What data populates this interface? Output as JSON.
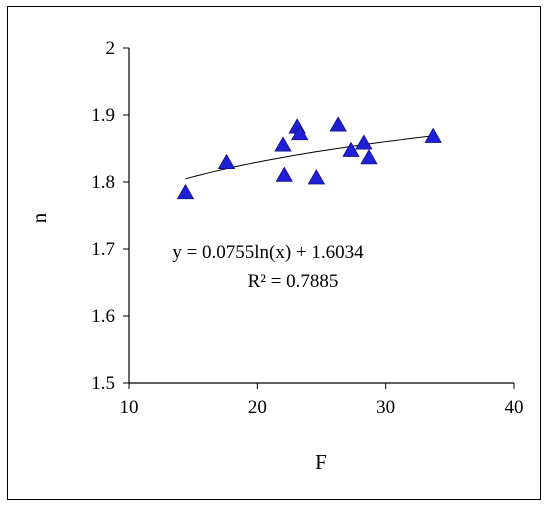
{
  "chart_data": {
    "type": "scatter",
    "title": "",
    "xlabel": "F",
    "ylabel": "n",
    "xlim": [
      10,
      40
    ],
    "ylim": [
      1.5,
      2.0
    ],
    "xticks": [
      "10",
      "20",
      "30",
      "40"
    ],
    "yticks": [
      "1.5",
      "1.6",
      "1.7",
      "1.8",
      "1.9",
      "2"
    ],
    "grid": false,
    "marker": "triangle",
    "marker_color": "#1f1fd6",
    "points": [
      {
        "x": 14.4,
        "y": 1.784
      },
      {
        "x": 17.6,
        "y": 1.829
      },
      {
        "x": 22.0,
        "y": 1.855
      },
      {
        "x": 22.1,
        "y": 1.81
      },
      {
        "x": 23.1,
        "y": 1.882
      },
      {
        "x": 23.3,
        "y": 1.872
      },
      {
        "x": 24.6,
        "y": 1.806
      },
      {
        "x": 26.3,
        "y": 1.885
      },
      {
        "x": 27.3,
        "y": 1.847
      },
      {
        "x": 28.3,
        "y": 1.858
      },
      {
        "x": 28.7,
        "y": 1.836
      },
      {
        "x": 33.7,
        "y": 1.868
      }
    ],
    "trendline": {
      "type": "logarithmic",
      "a": 0.0755,
      "b": 1.6034,
      "x_range": [
        14.4,
        33.7
      ]
    },
    "annotations": [
      "y = 0.0755ln(x) + 1.6034",
      "R² = 0.7885"
    ]
  }
}
